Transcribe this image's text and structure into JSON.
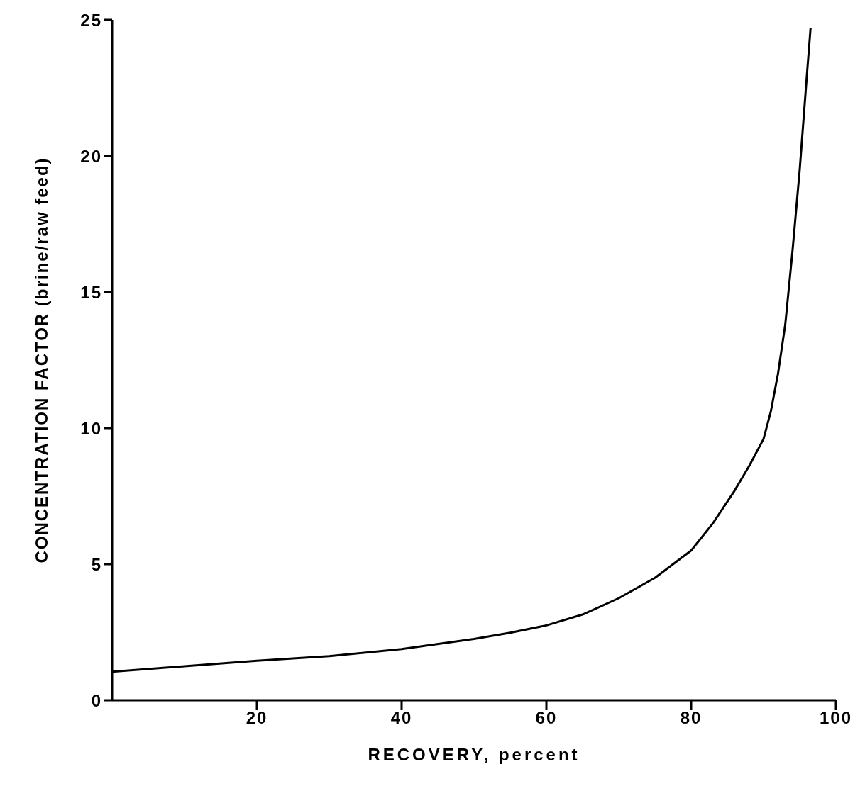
{
  "chart_data": {
    "type": "line",
    "xlabel": "RECOVERY, percent",
    "ylabel": "CONCENTRATION FACTOR (brine/raw feed)",
    "x": [
      0,
      10,
      20,
      30,
      40,
      50,
      55,
      60,
      65,
      70,
      75,
      80,
      83,
      86,
      88,
      90,
      91,
      92,
      93,
      94,
      95,
      96,
      96.5
    ],
    "series": [
      {
        "color": "#000000",
        "values": [
          1.05,
          1.25,
          1.45,
          1.62,
          1.88,
          2.25,
          2.48,
          2.75,
          3.15,
          3.75,
          4.5,
          5.5,
          6.5,
          7.7,
          8.6,
          9.6,
          10.6,
          12,
          13.8,
          16.5,
          19.5,
          23,
          24.7
        ]
      }
    ],
    "xlim": [
      0,
      100
    ],
    "xticks": [
      20,
      40,
      60,
      80,
      100
    ],
    "ylim": [
      0,
      25
    ],
    "yticks": [
      0,
      5,
      10,
      15,
      20,
      25
    ],
    "grid": false,
    "legend": false,
    "marker": "none",
    "line_style": "solid"
  }
}
